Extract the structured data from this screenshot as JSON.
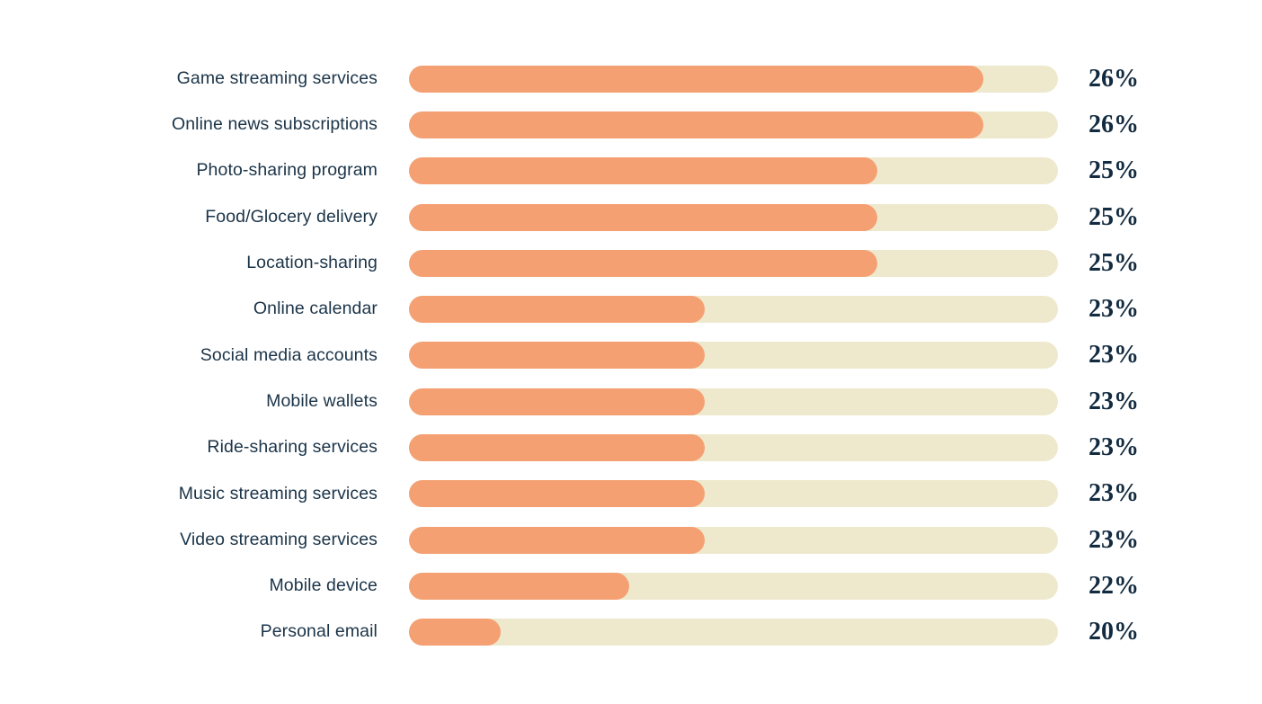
{
  "chart_data": {
    "type": "bar",
    "orientation": "horizontal",
    "title": "",
    "xlabel": "",
    "ylabel": "",
    "unit": "%",
    "grid": false,
    "legend": false,
    "value_label_position": "right",
    "categories": [
      "Game streaming services",
      "Online news subscriptions",
      "Photo-sharing program",
      "Food/Glocery delivery",
      "Location-sharing",
      "Online calendar",
      "Social media accounts",
      "Mobile wallets",
      "Ride-sharing services",
      "Music streaming services",
      "Video streaming services",
      "Mobile device",
      "Personal email"
    ],
    "values": [
      26,
      26,
      25,
      25,
      25,
      23,
      23,
      23,
      23,
      23,
      23,
      22,
      20
    ],
    "value_labels": [
      "26%",
      "26%",
      "25%",
      "25%",
      "25%",
      "23%",
      "23%",
      "23%",
      "23%",
      "23%",
      "23%",
      "22%",
      "20%"
    ],
    "bar_fill_fractions": [
      0.885,
      0.885,
      0.722,
      0.722,
      0.722,
      0.456,
      0.456,
      0.456,
      0.456,
      0.456,
      0.456,
      0.339,
      0.141
    ]
  },
  "colors": {
    "bar_fill": "#F4A072",
    "bar_track": "#EEE9CD",
    "category_text": "#1B3448",
    "value_text": "#132B40",
    "background": "#FFFFFF"
  }
}
